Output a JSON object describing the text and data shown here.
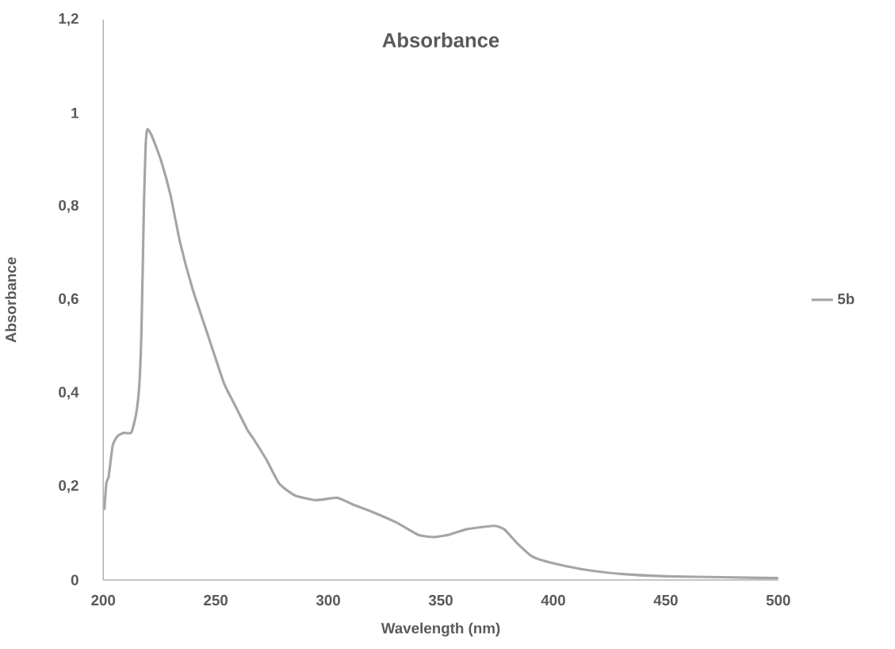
{
  "chart_data": {
    "type": "line",
    "title": "Absorbance",
    "xlabel": "Wavelength (nm)",
    "ylabel": "Absorbance",
    "x": [
      200.5,
      201.4,
      202.4,
      204.2,
      206.3,
      209,
      212.5,
      214.6,
      216,
      217,
      218.1,
      218.8,
      219.6,
      221.6,
      225.7,
      229.9,
      234.1,
      239.7,
      246.6,
      253.6,
      259.1,
      264,
      266.8,
      272.6,
      278.3,
      285.2,
      294.6,
      303.9,
      310.8,
      320,
      330.4,
      339.8,
      346.8,
      353.7,
      361.8,
      373.5,
      378.1,
      383.9,
      390.8,
      399,
      412.9,
      430,
      450,
      475,
      500
    ],
    "series": [
      {
        "name": "5b",
        "color": "#a5a5a5",
        "values": [
          0.15,
          0.208,
          0.221,
          0.288,
          0.308,
          0.315,
          0.316,
          0.355,
          0.415,
          0.536,
          0.804,
          0.925,
          0.965,
          0.951,
          0.898,
          0.824,
          0.724,
          0.623,
          0.523,
          0.422,
          0.369,
          0.322,
          0.302,
          0.257,
          0.206,
          0.181,
          0.171,
          0.176,
          0.162,
          0.145,
          0.123,
          0.097,
          0.092,
          0.097,
          0.109,
          0.116,
          0.109,
          0.079,
          0.05,
          0.037,
          0.023,
          0.013,
          0.008,
          0.006,
          0.004
        ]
      }
    ],
    "xlim": [
      200,
      500
    ],
    "xticks": [
      200,
      250,
      300,
      350,
      400,
      450,
      500
    ],
    "ylim": [
      0,
      1.2
    ],
    "yticks": [
      0,
      {
        "value": 0.2,
        "label": "0,2"
      },
      {
        "value": 0.4,
        "label": "0,4"
      },
      {
        "value": 0.6,
        "label": "0,6"
      },
      {
        "value": 0.8,
        "label": "0,8"
      },
      1,
      {
        "value": 1.2,
        "label": "1,2"
      }
    ],
    "legend": "right",
    "grid": false,
    "marker": "none",
    "line_style": "solid"
  }
}
